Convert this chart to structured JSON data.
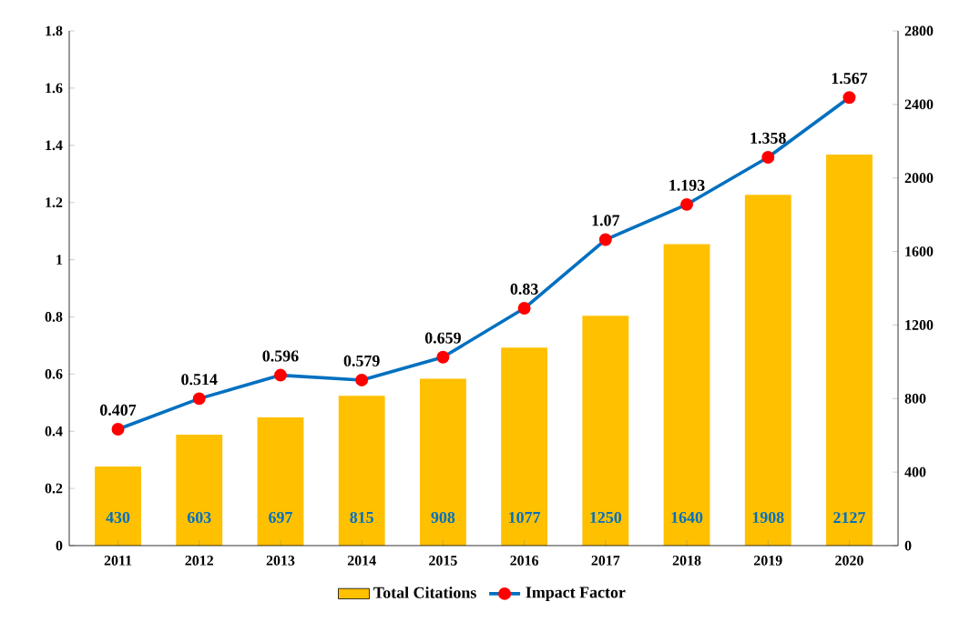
{
  "chart_data": {
    "type": "bar",
    "categories": [
      "2011",
      "2012",
      "2013",
      "2014",
      "2015",
      "2016",
      "2017",
      "2018",
      "2019",
      "2020"
    ],
    "series": [
      {
        "name": "Total Citations",
        "axis": "y2",
        "color": "#ffc000",
        "values": [
          430,
          603,
          697,
          815,
          908,
          1077,
          1250,
          1640,
          1908,
          2127
        ]
      },
      {
        "name": "Impact Factor",
        "type": "line",
        "color": "#0070c0",
        "marker": "circle",
        "values": [
          0.407,
          0.514,
          0.596,
          0.579,
          0.659,
          0.83,
          1.07,
          1.193,
          1.358,
          1.567
        ]
      }
    ],
    "ylim": [
      0,
      1.8
    ],
    "yticks": [
      0,
      0.2,
      0.4,
      0.6,
      0.8,
      1,
      1.2,
      1.4,
      1.6,
      1.8
    ],
    "y2lim": [
      0,
      2800
    ],
    "y2ticks": [
      0,
      400,
      800,
      1200,
      1600,
      2000,
      2400,
      2800
    ],
    "data_labels": true,
    "legend": "bottom",
    "grid": false
  }
}
